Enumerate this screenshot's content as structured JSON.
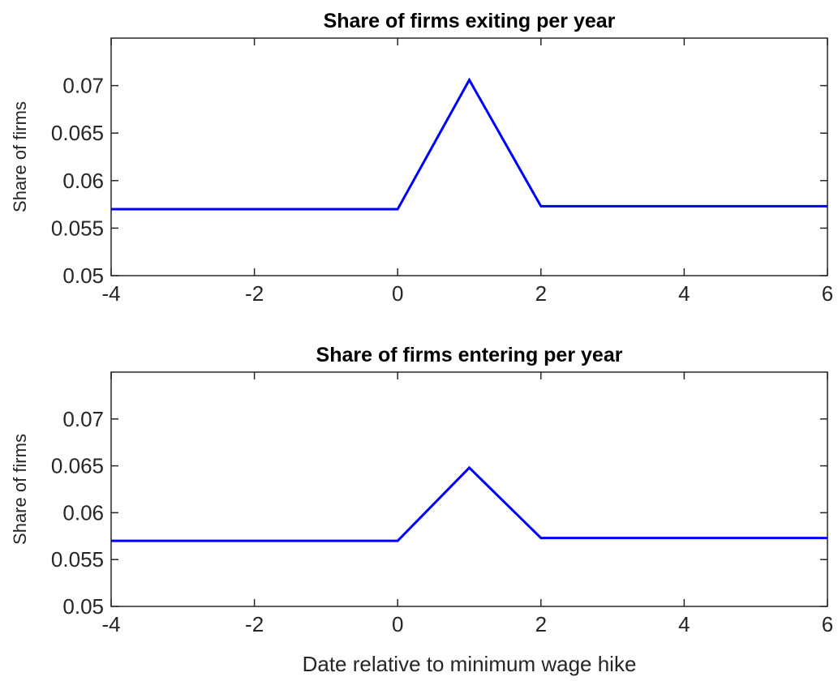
{
  "chart_data": [
    {
      "type": "line",
      "title": "Share of firms exiting per year",
      "xlabel": "",
      "ylabel": "Share of firms",
      "xlim": [
        -4,
        6
      ],
      "ylim": [
        0.05,
        0.075
      ],
      "xticks": [
        -4,
        -2,
        0,
        2,
        4,
        6
      ],
      "xtick_labels": [
        "-4",
        "-2",
        "0",
        "2",
        "4",
        "6"
      ],
      "yticks": [
        0.05,
        0.055,
        0.06,
        0.065,
        0.07
      ],
      "ytick_labels": [
        "0.05",
        "0.055",
        "0.06",
        "0.065",
        "0.07"
      ],
      "grid": false,
      "series": [
        {
          "color": "#0000ff",
          "x": [
            -4,
            0,
            1,
            2,
            6
          ],
          "y": [
            0.057,
            0.057,
            0.0706,
            0.0573,
            0.0573
          ]
        }
      ]
    },
    {
      "type": "line",
      "title": "Share of firms entering per year",
      "xlabel": "Date relative to minimum wage hike",
      "ylabel": "Share of firms",
      "xlim": [
        -4,
        6
      ],
      "ylim": [
        0.05,
        0.075
      ],
      "xticks": [
        -4,
        -2,
        0,
        2,
        4,
        6
      ],
      "xtick_labels": [
        "-4",
        "-2",
        "0",
        "2",
        "4",
        "6"
      ],
      "yticks": [
        0.05,
        0.055,
        0.06,
        0.065,
        0.07
      ],
      "ytick_labels": [
        "0.05",
        "0.055",
        "0.06",
        "0.065",
        "0.07"
      ],
      "grid": false,
      "series": [
        {
          "color": "#0000ff",
          "x": [
            -4,
            0,
            1,
            2,
            6
          ],
          "y": [
            0.057,
            0.057,
            0.0648,
            0.0573,
            0.0573
          ]
        }
      ]
    }
  ]
}
